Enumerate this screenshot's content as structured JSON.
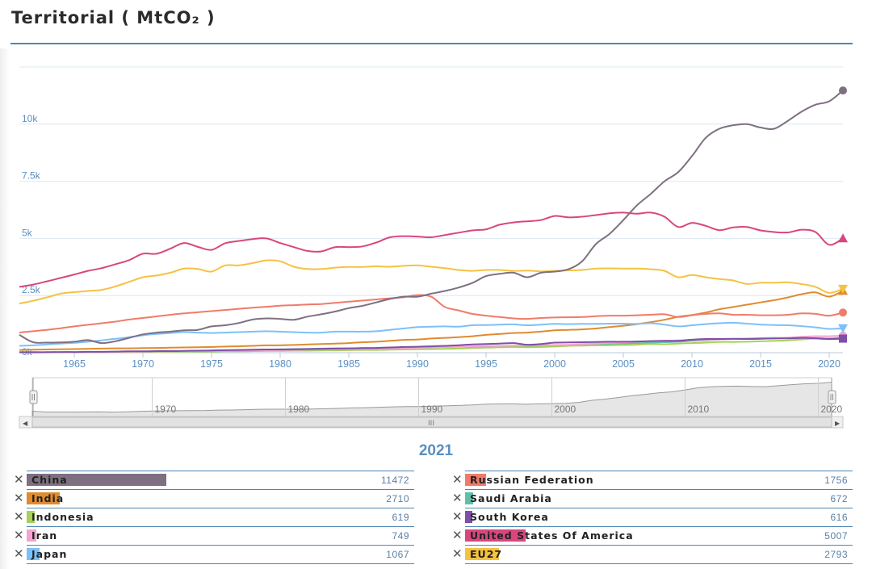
{
  "page_title": "Territorial ( MtCO₂ )",
  "year_label": "2021",
  "chart_data": {
    "type": "line",
    "x": [
      1961,
      1962,
      1963,
      1964,
      1965,
      1966,
      1967,
      1968,
      1969,
      1970,
      1971,
      1972,
      1973,
      1974,
      1975,
      1976,
      1977,
      1978,
      1979,
      1980,
      1981,
      1982,
      1983,
      1984,
      1985,
      1986,
      1987,
      1988,
      1989,
      1990,
      1991,
      1992,
      1993,
      1994,
      1995,
      1996,
      1997,
      1998,
      1999,
      2000,
      2001,
      2002,
      2003,
      2004,
      2005,
      2006,
      2007,
      2008,
      2009,
      2010,
      2011,
      2012,
      2013,
      2014,
      2015,
      2016,
      2017,
      2018,
      2019,
      2020,
      2021
    ],
    "xlim": [
      1961,
      2021
    ],
    "ylim": [
      0,
      12500
    ],
    "y_ticks": [
      0,
      2500,
      5000,
      7500,
      10000
    ],
    "y_tick_labels": [
      "0k",
      "2.5k",
      "5k",
      "7.5k",
      "10k"
    ],
    "x_ticks": [
      1965,
      1970,
      1975,
      1980,
      1985,
      1990,
      1995,
      2000,
      2005,
      2010,
      2015,
      2020
    ],
    "x_tick_labels": [
      "1965",
      "1970",
      "1975",
      "1980",
      "1985",
      "1990",
      "1995",
      "2000",
      "2005",
      "2010",
      "2015",
      "2020"
    ],
    "navigator_labels": [
      "1970",
      "1980",
      "1990",
      "2000",
      "2010",
      "2020"
    ],
    "grid": true,
    "series": [
      {
        "name": "China",
        "color": "#7e7080",
        "marker": "circle",
        "values": [
          780,
          460,
          440,
          450,
          480,
          550,
          420,
          500,
          650,
          800,
          880,
          920,
          980,
          1000,
          1150,
          1200,
          1300,
          1450,
          1500,
          1480,
          1440,
          1580,
          1680,
          1800,
          1950,
          2050,
          2200,
          2350,
          2450,
          2450,
          2580,
          2700,
          2850,
          3050,
          3350,
          3450,
          3500,
          3300,
          3500,
          3550,
          3650,
          4000,
          4750,
          5200,
          5800,
          6450,
          6950,
          7500,
          7900,
          8600,
          9400,
          9800,
          9950,
          10000,
          9850,
          9800,
          10150,
          10550,
          10850,
          11000,
          11472
        ]
      },
      {
        "name": "United States Of America",
        "color": "#d9467e",
        "marker": "triangle-up",
        "values": [
          2880,
          2980,
          3120,
          3270,
          3420,
          3580,
          3700,
          3870,
          4050,
          4330,
          4330,
          4550,
          4800,
          4630,
          4500,
          4790,
          4890,
          4970,
          5000,
          4800,
          4620,
          4450,
          4430,
          4620,
          4620,
          4650,
          4820,
          5050,
          5100,
          5080,
          5050,
          5150,
          5250,
          5350,
          5400,
          5600,
          5700,
          5750,
          5800,
          5980,
          5920,
          5950,
          6020,
          6100,
          6130,
          6080,
          6130,
          5950,
          5500,
          5680,
          5550,
          5360,
          5480,
          5500,
          5350,
          5280,
          5260,
          5380,
          5280,
          4720,
          5007
        ]
      },
      {
        "name": "EU27",
        "color": "#f5c242",
        "marker": "triangle-down",
        "values": [
          2150,
          2270,
          2420,
          2580,
          2650,
          2700,
          2750,
          2900,
          3100,
          3300,
          3380,
          3500,
          3680,
          3660,
          3550,
          3820,
          3820,
          3920,
          4040,
          4000,
          3760,
          3660,
          3660,
          3720,
          3750,
          3750,
          3780,
          3760,
          3800,
          3820,
          3760,
          3700,
          3620,
          3580,
          3620,
          3620,
          3580,
          3590,
          3560,
          3580,
          3600,
          3620,
          3680,
          3690,
          3680,
          3680,
          3650,
          3580,
          3300,
          3400,
          3300,
          3220,
          3160,
          3010,
          3060,
          3060,
          3080,
          3000,
          2880,
          2620,
          2793
        ]
      },
      {
        "name": "Russian Federation",
        "color": "#f07b6a",
        "marker": "circle",
        "values": [
          880,
          940,
          1000,
          1070,
          1150,
          1220,
          1290,
          1360,
          1450,
          1520,
          1590,
          1660,
          1720,
          1770,
          1820,
          1870,
          1920,
          1970,
          2010,
          2060,
          2080,
          2110,
          2130,
          2180,
          2230,
          2280,
          2330,
          2380,
          2430,
          2520,
          2450,
          2000,
          1850,
          1700,
          1620,
          1560,
          1500,
          1480,
          1520,
          1540,
          1550,
          1560,
          1600,
          1620,
          1620,
          1640,
          1660,
          1680,
          1560,
          1640,
          1700,
          1720,
          1660,
          1660,
          1640,
          1640,
          1660,
          1720,
          1700,
          1620,
          1756
        ]
      },
      {
        "name": "Japan",
        "color": "#7cc0fa",
        "marker": "triangle-down",
        "values": [
          300,
          320,
          360,
          400,
          430,
          480,
          540,
          610,
          680,
          760,
          820,
          860,
          900,
          880,
          860,
          880,
          900,
          920,
          940,
          920,
          900,
          880,
          880,
          920,
          920,
          920,
          940,
          1000,
          1060,
          1120,
          1140,
          1150,
          1140,
          1200,
          1210,
          1230,
          1240,
          1200,
          1230,
          1260,
          1250,
          1260,
          1260,
          1270,
          1270,
          1260,
          1290,
          1230,
          1150,
          1200,
          1250,
          1290,
          1310,
          1270,
          1230,
          1210,
          1200,
          1160,
          1110,
          1040,
          1067
        ]
      },
      {
        "name": "India",
        "color": "#e08b2e",
        "marker": "triangle-up",
        "values": [
          120,
          130,
          140,
          150,
          160,
          170,
          180,
          190,
          190,
          200,
          210,
          220,
          230,
          240,
          250,
          270,
          280,
          300,
          320,
          320,
          340,
          360,
          380,
          400,
          420,
          460,
          480,
          520,
          560,
          580,
          620,
          650,
          680,
          720,
          780,
          820,
          860,
          880,
          920,
          980,
          1000,
          1020,
          1060,
          1120,
          1180,
          1250,
          1340,
          1440,
          1570,
          1650,
          1760,
          1900,
          2000,
          2100,
          2200,
          2300,
          2420,
          2560,
          2640,
          2450,
          2710
        ]
      },
      {
        "name": "South Korea",
        "color": "#7e4fa8",
        "marker": "square",
        "values": [
          20,
          20,
          20,
          30,
          30,
          40,
          40,
          50,
          60,
          60,
          70,
          70,
          80,
          90,
          100,
          110,
          120,
          130,
          140,
          140,
          150,
          160,
          170,
          180,
          190,
          200,
          210,
          230,
          250,
          260,
          280,
          300,
          330,
          360,
          380,
          400,
          420,
          350,
          380,
          440,
          450,
          460,
          470,
          480,
          480,
          490,
          510,
          520,
          520,
          570,
          600,
          600,
          610,
          600,
          610,
          620,
          630,
          650,
          630,
          600,
          616
        ]
      },
      {
        "name": "Iran",
        "color": "#f5a3cf",
        "marker": "circle",
        "values": [
          20,
          22,
          25,
          28,
          30,
          33,
          36,
          40,
          45,
          50,
          55,
          60,
          70,
          80,
          90,
          100,
          110,
          110,
          110,
          110,
          120,
          130,
          140,
          150,
          160,
          170,
          180,
          190,
          200,
          220,
          230,
          250,
          260,
          280,
          290,
          300,
          310,
          320,
          330,
          340,
          350,
          380,
          400,
          430,
          450,
          480,
          500,
          520,
          540,
          560,
          570,
          580,
          600,
          620,
          620,
          640,
          660,
          700,
          720,
          720,
          749
        ]
      },
      {
        "name": "Indonesia",
        "color": "#a8d05a",
        "marker": "circle",
        "values": [
          20,
          20,
          20,
          20,
          20,
          30,
          30,
          30,
          30,
          40,
          40,
          40,
          50,
          50,
          50,
          60,
          60,
          70,
          80,
          80,
          90,
          90,
          100,
          100,
          110,
          120,
          120,
          130,
          140,
          150,
          160,
          170,
          180,
          200,
          220,
          240,
          250,
          240,
          250,
          270,
          300,
          310,
          320,
          330,
          340,
          350,
          380,
          370,
          400,
          420,
          440,
          470,
          470,
          480,
          500,
          520,
          540,
          580,
          620,
          590,
          619
        ]
      },
      {
        "name": "Saudi Arabia",
        "color": "#5fc0a8",
        "marker": "circle",
        "values": [
          10,
          10,
          20,
          20,
          20,
          20,
          30,
          30,
          30,
          40,
          50,
          60,
          70,
          80,
          90,
          100,
          110,
          120,
          130,
          150,
          160,
          170,
          180,
          190,
          190,
          200,
          210,
          210,
          220,
          230,
          240,
          250,
          260,
          260,
          270,
          280,
          290,
          290,
          300,
          300,
          320,
          330,
          350,
          380,
          400,
          420,
          440,
          460,
          480,
          520,
          540,
          580,
          600,
          620,
          640,
          650,
          640,
          620,
          640,
          620,
          672
        ]
      }
    ]
  },
  "legend": {
    "left": [
      {
        "name": "China",
        "value": "11472",
        "color": "#7e7080",
        "bar_fraction": 0.36
      },
      {
        "name": "India",
        "value": "2710",
        "color": "#e08b2e",
        "bar_fraction": 0.085
      },
      {
        "name": "Indonesia",
        "value": "619",
        "color": "#a8d05a",
        "bar_fraction": 0.02
      },
      {
        "name": "Iran",
        "value": "749",
        "color": "#f5a3cf",
        "bar_fraction": 0.024
      },
      {
        "name": "Japan",
        "value": "1067",
        "color": "#7cc0fa",
        "bar_fraction": 0.034
      }
    ],
    "right": [
      {
        "name": "Russian Federation",
        "value": "1756",
        "color": "#f07b6a",
        "bar_fraction": 0.055
      },
      {
        "name": "Saudi Arabia",
        "value": "672",
        "color": "#5fc0a8",
        "bar_fraction": 0.021
      },
      {
        "name": "South Korea",
        "value": "616",
        "color": "#7e4fa8",
        "bar_fraction": 0.019
      },
      {
        "name": "United States Of America",
        "value": "5007",
        "color": "#d9467e",
        "bar_fraction": 0.157
      },
      {
        "name": "EU27",
        "value": "2793",
        "color": "#f5c242",
        "bar_fraction": 0.088
      }
    ]
  }
}
